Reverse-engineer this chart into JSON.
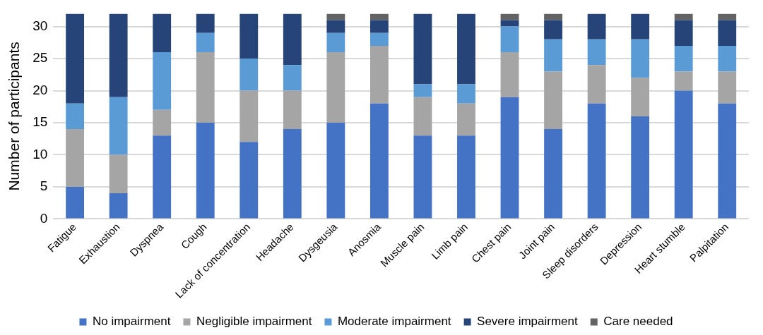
{
  "chart_data": {
    "type": "bar",
    "stacked": true,
    "ylabel": "Number of participants",
    "categories": [
      "Fatigue",
      "Exhaustion",
      "Dyspnea",
      "Cough",
      "Lack of concentration",
      "Headache",
      "Dysgeusia",
      "Anosmia",
      "Muscle pain",
      "Limb pain",
      "Chest pain",
      "Joint pain",
      "Sleep disorders",
      "Depression",
      "Heart stumble",
      "Palpitation"
    ],
    "series": [
      {
        "name": "No impairment",
        "color": "#4472c4",
        "values": [
          5,
          4,
          13,
          15,
          12,
          14,
          15,
          18,
          13,
          13,
          19,
          14,
          18,
          16,
          20,
          18
        ]
      },
      {
        "name": "Negligible impairment",
        "color": "#a5a5a5",
        "values": [
          9,
          6,
          4,
          11,
          8,
          6,
          11,
          9,
          6,
          5,
          7,
          9,
          6,
          6,
          3,
          5
        ]
      },
      {
        "name": "Moderate impairment",
        "color": "#5b9bd5",
        "values": [
          4,
          9,
          9,
          3,
          5,
          4,
          3,
          2,
          2,
          3,
          4,
          5,
          4,
          6,
          4,
          4
        ]
      },
      {
        "name": "Severe impairment",
        "color": "#264478",
        "values": [
          14,
          13,
          6,
          3,
          7,
          8,
          2,
          2,
          11,
          11,
          1,
          3,
          4,
          4,
          4,
          4
        ]
      },
      {
        "name": "Care needed",
        "color": "#636363",
        "values": [
          0,
          0,
          0,
          0,
          0,
          0,
          1,
          1,
          0,
          0,
          1,
          1,
          0,
          0,
          1,
          1
        ]
      }
    ],
    "ylim": [
      0,
      32
    ],
    "yticks": [
      0,
      5,
      10,
      15,
      20,
      25,
      30
    ],
    "grid": "y",
    "legend": "bottom"
  }
}
